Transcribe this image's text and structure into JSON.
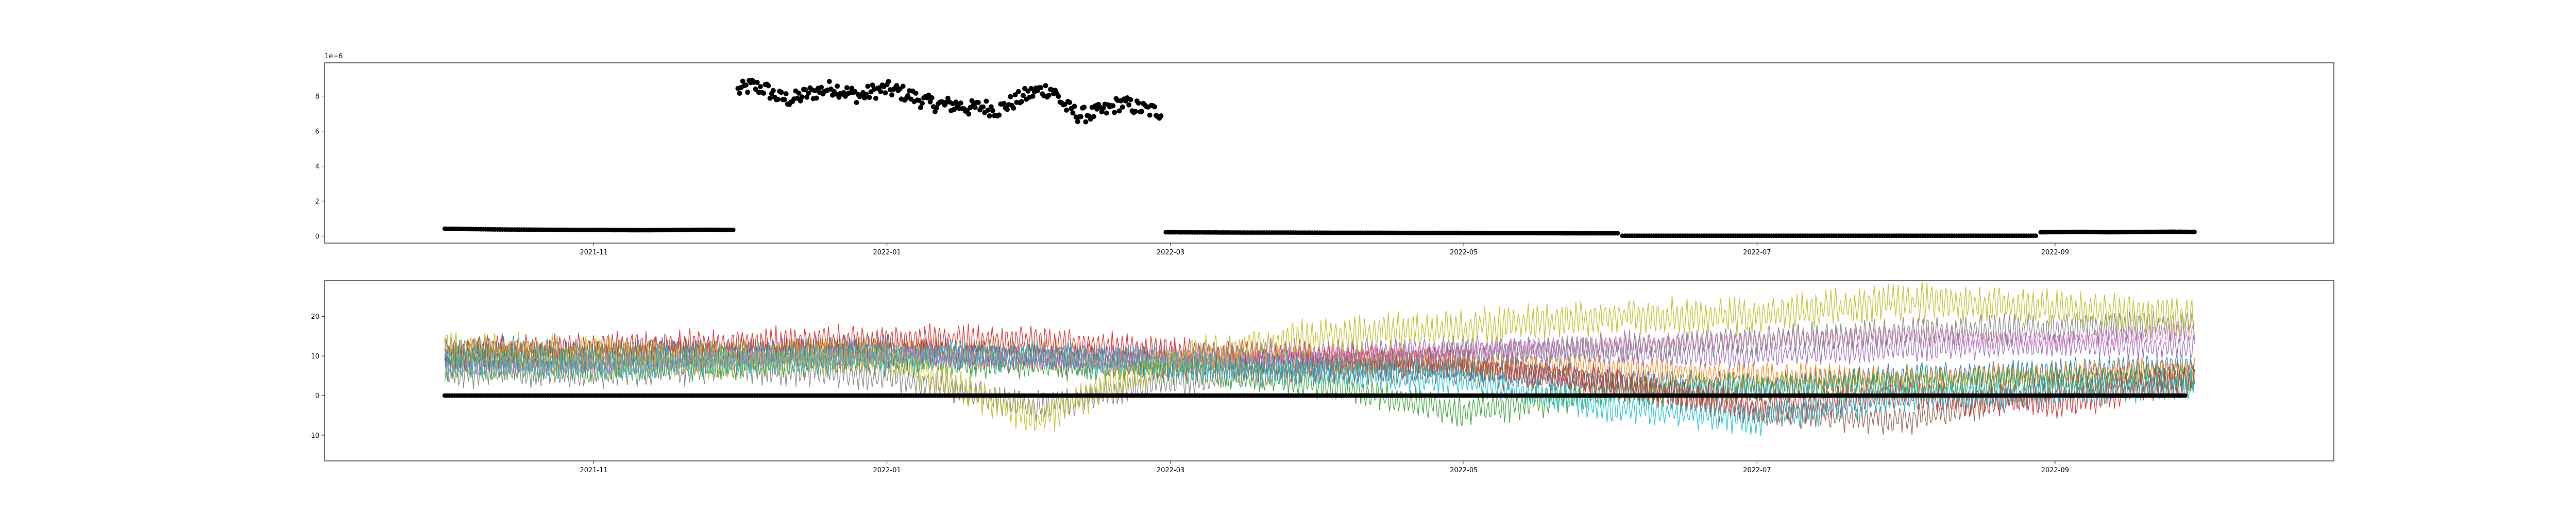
{
  "figure": {
    "background": "#ffffff"
  },
  "chart_data": [
    {
      "type": "scatter",
      "title": "",
      "xlabel": "",
      "ylabel": "",
      "y_offset_label": "1e−6",
      "x_type": "date",
      "xlim": [
        "2021-09-06",
        "2022-10-29"
      ],
      "ylim": [
        -0.4,
        9.9
      ],
      "x_ticks": [
        "2021-11",
        "2022-01",
        "2022-03",
        "2022-05",
        "2022-07",
        "2022-09"
      ],
      "y_ticks": [
        0,
        2,
        4,
        6,
        8
      ],
      "grid": false,
      "marker_color": "#000000",
      "segments": [
        {
          "start": "2021-10-01",
          "end": "2021-11-30",
          "values": [
            0.42,
            0.4,
            0.38,
            0.37,
            0.36,
            0.35,
            0.35,
            0.34,
            0.34,
            0.35,
            0.36,
            0.35
          ]
        },
        {
          "start": "2021-12-01",
          "end": "2022-02-27",
          "values": [
            8.3,
            8.6,
            8.4,
            7.9,
            7.8,
            8.1,
            8.3,
            8.5,
            8.2,
            8.0,
            8.3,
            8.4,
            8.2,
            7.9,
            7.6,
            7.5,
            7.5,
            7.3,
            7.4,
            7.2,
            7.6,
            8.0,
            8.3,
            8.4,
            7.4,
            6.9,
            7.0,
            7.2,
            7.6,
            7.4,
            7.2,
            7.1
          ]
        },
        {
          "start": "2022-02-28",
          "end": "2022-06-02",
          "values": [
            0.22,
            0.21,
            0.2,
            0.2,
            0.19,
            0.19,
            0.18,
            0.18,
            0.17,
            0.17,
            0.16,
            0.16
          ]
        },
        {
          "start": "2022-06-03",
          "end": "2022-08-28",
          "values": [
            0.02,
            0.02,
            0.02,
            0.02,
            0.02,
            0.02,
            0.02,
            0.02,
            0.02,
            0.02
          ]
        },
        {
          "start": "2022-08-29",
          "end": "2022-09-30",
          "values": [
            0.22,
            0.23,
            0.24,
            0.22,
            0.23,
            0.24,
            0.25,
            0.24
          ]
        }
      ]
    },
    {
      "type": "line",
      "title": "",
      "xlabel": "",
      "ylabel": "",
      "x_type": "date",
      "xlim": [
        "2021-09-06",
        "2022-10-29"
      ],
      "ylim": [
        -16.5,
        29
      ],
      "x_ticks": [
        "2021-11",
        "2022-01",
        "2022-03",
        "2022-05",
        "2022-07",
        "2022-09"
      ],
      "y_ticks": [
        -10,
        0,
        10,
        20
      ],
      "grid": false,
      "x": [
        "2021-10-01",
        "2021-11-01",
        "2021-12-01",
        "2022-01-01",
        "2022-02-01",
        "2022-03-01",
        "2022-04-01",
        "2022-05-01",
        "2022-06-01",
        "2022-07-01",
        "2022-08-01",
        "2022-09-01",
        "2022-09-30"
      ],
      "zero_markers": {
        "start": "2021-10-01",
        "end": "2022-09-28",
        "value": 0,
        "color": "#000000"
      },
      "series": [
        {
          "color": "#1f77b4",
          "amplitude": 2.5,
          "values": [
            12,
            11,
            11,
            12,
            10,
            9,
            8,
            7,
            4,
            2,
            5,
            6,
            8
          ]
        },
        {
          "color": "#ff7f0e",
          "amplitude": 2.5,
          "values": [
            10,
            10,
            11,
            12,
            11,
            9,
            9,
            8,
            7,
            5,
            4,
            5,
            7
          ]
        },
        {
          "color": "#2ca02c",
          "amplitude": 3.0,
          "values": [
            8,
            7,
            8,
            9,
            8,
            7,
            3,
            -4,
            1,
            2,
            3,
            4,
            4
          ]
        },
        {
          "color": "#d62728",
          "amplitude": 3.0,
          "values": [
            11,
            12,
            13,
            14,
            14,
            11,
            10,
            8,
            3,
            -3,
            0,
            -2,
            4
          ]
        },
        {
          "color": "#9467bd",
          "amplitude": 2.5,
          "values": [
            9,
            9,
            10,
            11,
            10,
            10,
            11,
            12,
            11,
            10,
            12,
            13,
            12
          ]
        },
        {
          "color": "#8c564b",
          "amplitude": 3.0,
          "values": [
            10,
            10,
            11,
            10,
            9,
            8,
            7,
            6,
            3,
            -4,
            -6,
            2,
            5
          ]
        },
        {
          "color": "#e377c2",
          "amplitude": 2.0,
          "values": [
            7,
            8,
            9,
            10,
            9,
            9,
            10,
            11,
            13,
            14,
            15,
            14,
            16
          ]
        },
        {
          "color": "#7f7f7f",
          "amplitude": 3.0,
          "values": [
            6,
            6,
            7,
            5,
            -3,
            4,
            7,
            10,
            12,
            14,
            16,
            17,
            18
          ]
        },
        {
          "color": "#bcbd22",
          "amplitude": 3.5,
          "values": [
            12,
            10,
            9,
            10,
            -6,
            9,
            15,
            17,
            20,
            20,
            24,
            22,
            20
          ]
        },
        {
          "color": "#17becf",
          "amplitude": 3.0,
          "values": [
            9,
            8,
            9,
            10,
            10,
            8,
            6,
            4,
            -3,
            -6,
            0,
            1,
            3
          ]
        }
      ]
    }
  ]
}
